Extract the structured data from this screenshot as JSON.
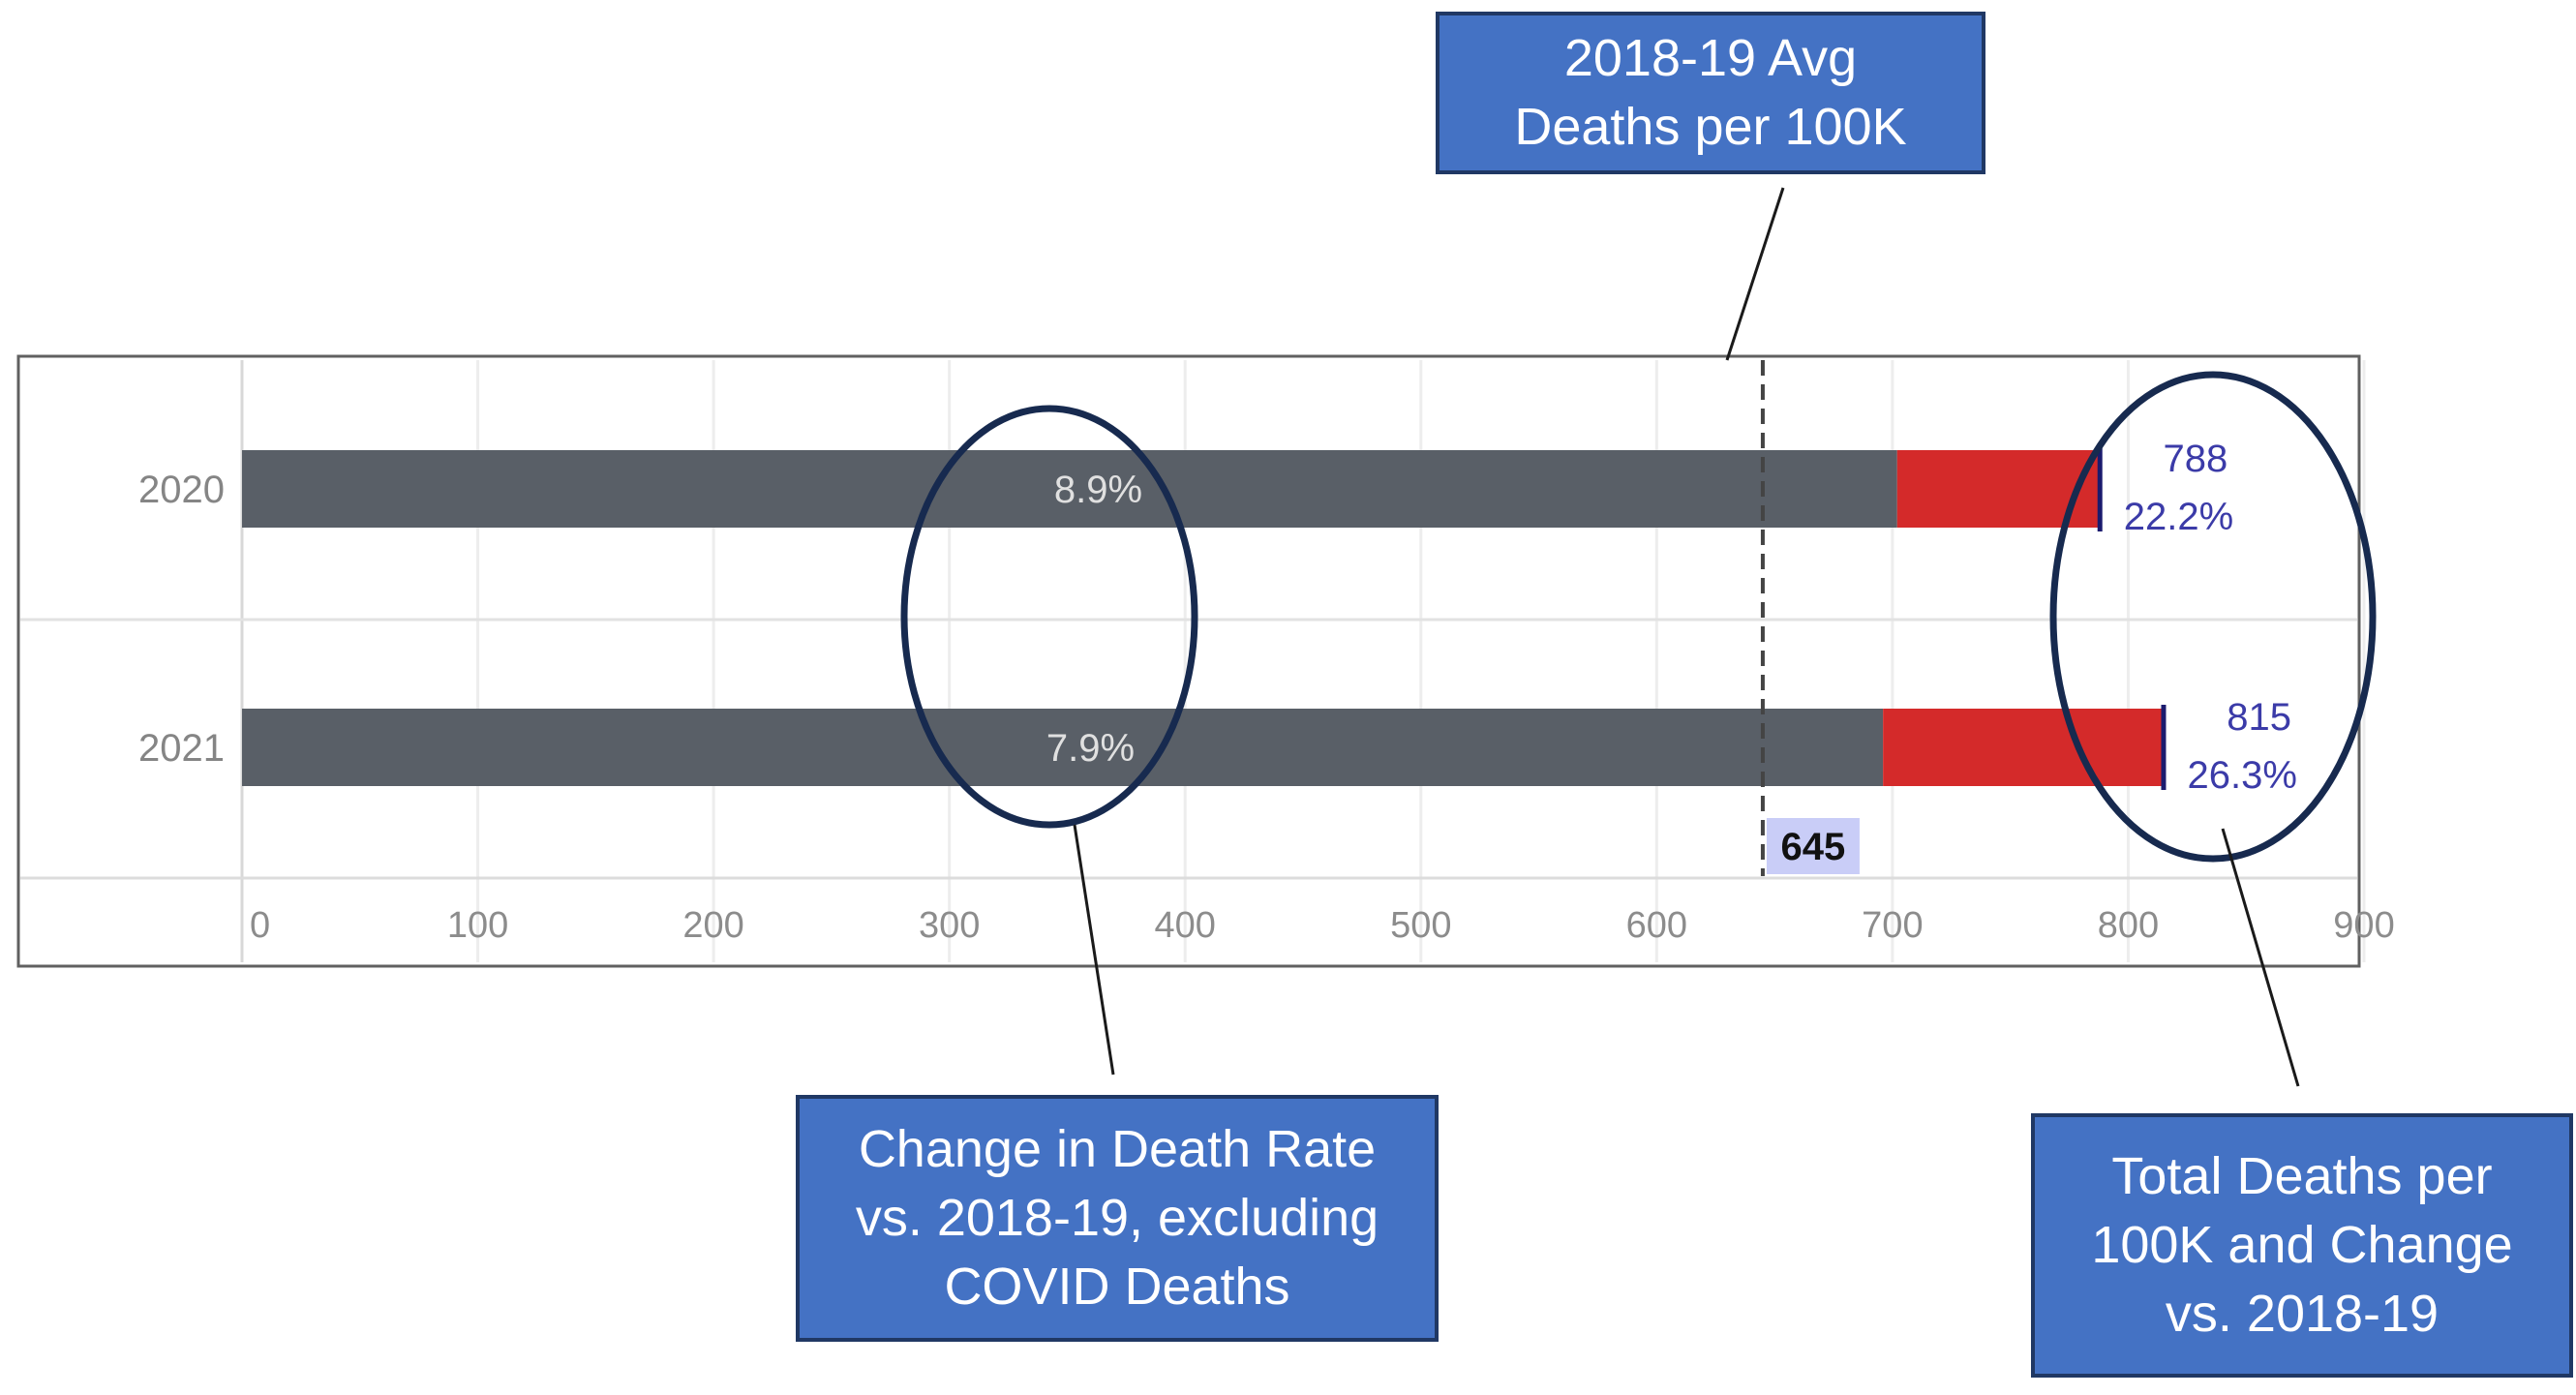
{
  "chart_data": {
    "type": "bar",
    "orientation": "horizontal",
    "stacked": true,
    "categories": [
      "2020",
      "2021"
    ],
    "series": [
      {
        "values": [
          702,
          696
        ],
        "color": "#595f67"
      },
      {
        "values": [
          86,
          119
        ],
        "color": "#d42a2a"
      }
    ],
    "totals": [
      788,
      815
    ],
    "total_change_labels": [
      "22.2%",
      "26.3%"
    ],
    "excl_covid_change_labels": [
      "8.9%",
      "7.9%"
    ],
    "reference_line": {
      "value": 645,
      "label": "645",
      "style": "dashed"
    },
    "xlim": [
      0,
      900
    ],
    "xticks": [
      0,
      100,
      200,
      300,
      400,
      500,
      600,
      700,
      800,
      900
    ],
    "grid": true,
    "colors": {
      "total_label": "#3b3ba8",
      "reference_label_bg": "#c9cdf7",
      "callout_fill": "#4472c4",
      "callout_border": "#203864",
      "ellipse": "#172a4f"
    }
  },
  "annotations": {
    "avg_callout": [
      "2018-19 Avg",
      "Deaths per 100K"
    ],
    "change_callout": [
      "Change in Death Rate",
      "vs. 2018-19, excluding",
      "COVID Deaths"
    ],
    "total_callout": [
      "Total Deaths per",
      "100K and Change",
      "vs. 2018-19"
    ]
  }
}
